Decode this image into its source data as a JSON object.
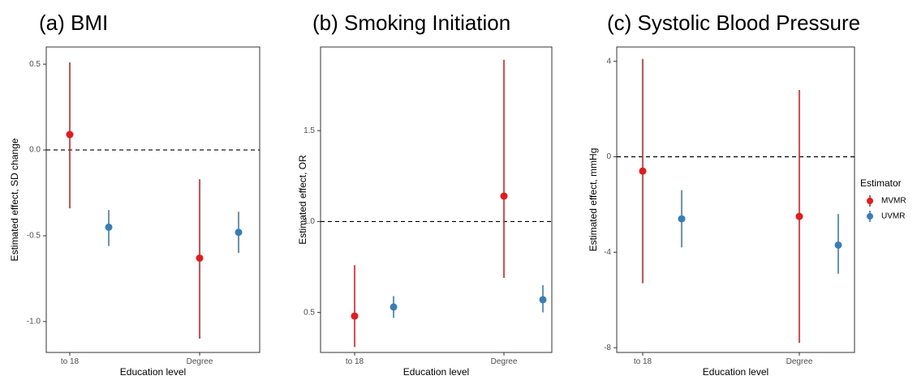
{
  "chart_data": [
    {
      "type": "scatter",
      "title": "(a)  BMI",
      "xlabel": "Education level",
      "ylabel": "Estimated effect, SD change",
      "categories": [
        "to 18",
        "Degree"
      ],
      "ylim": [
        -1.18,
        0.6
      ],
      "yticks": [
        0.5,
        0.0,
        -0.5,
        -1.0
      ],
      "ytick_labels": [
        "0.5",
        "0.0",
        "-0.5",
        "-1.0"
      ],
      "reference_line": 0.0,
      "series": [
        {
          "name": "MVMR",
          "color": "#e41a1c",
          "points": [
            {
              "category": "to 18",
              "estimate": 0.09,
              "lower": -0.34,
              "upper": 0.51
            },
            {
              "category": "Degree",
              "estimate": -0.63,
              "lower": -1.1,
              "upper": -0.17
            }
          ]
        },
        {
          "name": "UVMR",
          "color": "#377eb8",
          "points": [
            {
              "category": "to 18",
              "estimate": -0.45,
              "lower": -0.56,
              "upper": -0.35
            },
            {
              "category": "Degree",
              "estimate": -0.48,
              "lower": -0.6,
              "upper": -0.36
            }
          ]
        }
      ]
    },
    {
      "type": "scatter",
      "title": "(b)  Smoking Initiation",
      "xlabel": "Education level",
      "ylabel": "Estimated effect, OR",
      "categories": [
        "to 18",
        "Degree"
      ],
      "ylim": [
        0.28,
        1.96
      ],
      "yticks": [
        1.5,
        1.0,
        0.5
      ],
      "ytick_labels": [
        "1.5",
        "1.0",
        "0.5"
      ],
      "reference_line": 1.0,
      "series": [
        {
          "name": "MVMR",
          "color": "#e41a1c",
          "points": [
            {
              "category": "to 18",
              "estimate": 0.48,
              "lower": 0.31,
              "upper": 0.76
            },
            {
              "category": "Degree",
              "estimate": 1.14,
              "lower": 0.69,
              "upper": 1.89
            }
          ]
        },
        {
          "name": "UVMR",
          "color": "#377eb8",
          "points": [
            {
              "category": "to 18",
              "estimate": 0.53,
              "lower": 0.47,
              "upper": 0.59
            },
            {
              "category": "Degree",
              "estimate": 0.57,
              "lower": 0.5,
              "upper": 0.65
            }
          ]
        }
      ]
    },
    {
      "type": "scatter",
      "title": "(c)  Systolic Blood Pressure",
      "xlabel": "Education level",
      "ylabel": "Estimated effect, mmHg",
      "categories": [
        "to 18",
        "Degree"
      ],
      "ylim": [
        -8.2,
        4.6
      ],
      "yticks": [
        4,
        0,
        -4,
        -8
      ],
      "ytick_labels": [
        "4",
        "0",
        "-4",
        "-8"
      ],
      "reference_line": 0,
      "series": [
        {
          "name": "MVMR",
          "color": "#e41a1c",
          "points": [
            {
              "category": "to 18",
              "estimate": -0.6,
              "lower": -5.3,
              "upper": 4.1
            },
            {
              "category": "Degree",
              "estimate": -2.5,
              "lower": -7.8,
              "upper": 2.8
            }
          ]
        },
        {
          "name": "UVMR",
          "color": "#377eb8",
          "points": [
            {
              "category": "to 18",
              "estimate": -2.6,
              "lower": -3.8,
              "upper": -1.4
            },
            {
              "category": "Degree",
              "estimate": -3.7,
              "lower": -4.9,
              "upper": -2.4
            }
          ]
        }
      ]
    }
  ],
  "legend": {
    "title": "Estimator",
    "placement": "right",
    "items": [
      {
        "label": "MVMR",
        "color": "#e41a1c"
      },
      {
        "label": "UVMR",
        "color": "#377eb8"
      }
    ]
  }
}
